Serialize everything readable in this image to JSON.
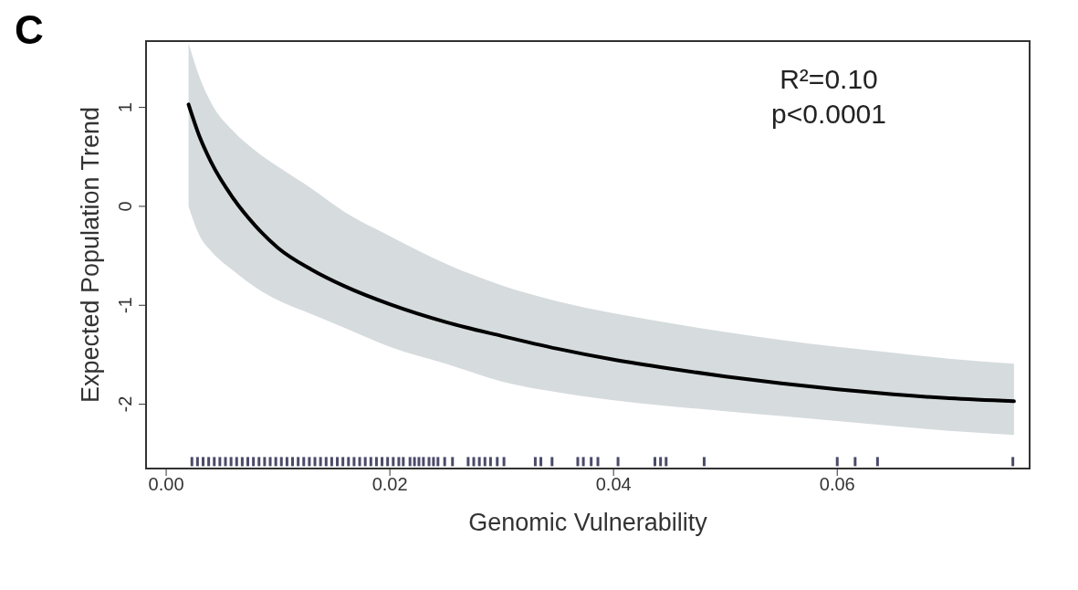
{
  "chart_data": {
    "type": "line",
    "xlabel": "Genomic Vulnerability",
    "ylabel": "Expected Population Trend",
    "annotations": [
      "C",
      "R²=0.10\np<0.0001"
    ],
    "xlim": [
      -0.0018,
      0.0772
    ],
    "ylim": [
      -2.65,
      1.67
    ],
    "xticks": [
      {
        "value": 0,
        "label": "0.00"
      },
      {
        "value": 0.02,
        "label": "0.02"
      },
      {
        "value": 0.04,
        "label": "0.04"
      },
      {
        "value": 0.06,
        "label": "0.06"
      }
    ],
    "yticks": [
      -2,
      -1,
      0,
      1
    ],
    "series": [
      {
        "color": "#000000",
        "x": [
          0.002,
          0.003,
          0.004,
          0.006,
          0.008,
          0.01,
          0.013,
          0.016,
          0.02,
          0.025,
          0.03,
          0.035,
          0.04,
          0.045,
          0.05,
          0.055,
          0.06,
          0.065,
          0.07,
          0.0758
        ],
        "values": [
          1.03,
          0.7,
          0.45,
          0.08,
          -0.2,
          -0.42,
          -0.64,
          -0.81,
          -0.99,
          -1.17,
          -1.31,
          -1.44,
          -1.55,
          -1.64,
          -1.72,
          -1.79,
          -1.85,
          -1.9,
          -1.94,
          -1.97
        ],
        "upper": [
          1.65,
          1.3,
          1.05,
          0.76,
          0.56,
          0.4,
          0.18,
          -0.06,
          -0.3,
          -0.58,
          -0.8,
          -0.96,
          -1.08,
          -1.18,
          -1.27,
          -1.35,
          -1.42,
          -1.48,
          -1.54,
          -1.59
        ],
        "lower": [
          0.0,
          -0.3,
          -0.45,
          -0.65,
          -0.82,
          -0.95,
          -1.09,
          -1.23,
          -1.42,
          -1.59,
          -1.77,
          -1.88,
          -1.96,
          -2.02,
          -2.07,
          -2.12,
          -2.17,
          -2.22,
          -2.27,
          -2.31
        ]
      },
      {
        "type": "scatter",
        "color": "#4a4a6a",
        "x": [
          0.0023,
          0.0028,
          0.0033,
          0.0038,
          0.0043,
          0.0048,
          0.0053,
          0.0058,
          0.0063,
          0.0068,
          0.0073,
          0.0078,
          0.0083,
          0.0088,
          0.0093,
          0.0098,
          0.0103,
          0.0108,
          0.0113,
          0.0118,
          0.0123,
          0.0128,
          0.0133,
          0.0138,
          0.0143,
          0.0148,
          0.0153,
          0.0158,
          0.0163,
          0.0168,
          0.0173,
          0.0178,
          0.0183,
          0.0188,
          0.0193,
          0.0198,
          0.0203,
          0.0208,
          0.0212,
          0.0218,
          0.0222,
          0.0226,
          0.023,
          0.0235,
          0.0239,
          0.0243,
          0.0249,
          0.0256,
          0.027,
          0.0275,
          0.028,
          0.0285,
          0.029,
          0.0296,
          0.0302,
          0.033,
          0.0335,
          0.0345,
          0.0368,
          0.0373,
          0.038,
          0.0386,
          0.0404,
          0.0437,
          0.0442,
          0.0447,
          0.0481,
          0.06,
          0.0616,
          0.0636,
          0.0757
        ],
        "values": [
          -2.58,
          -2.58,
          -2.58,
          -2.58,
          -2.58,
          -2.58,
          -2.58,
          -2.58,
          -2.58,
          -2.58,
          -2.58,
          -2.58,
          -2.58,
          -2.58,
          -2.58,
          -2.58,
          -2.58,
          -2.58,
          -2.58,
          -2.58,
          -2.58,
          -2.58,
          -2.58,
          -2.58,
          -2.58,
          -2.58,
          -2.58,
          -2.58,
          -2.58,
          -2.58,
          -2.58,
          -2.58,
          -2.58,
          -2.58,
          -2.58,
          -2.58,
          -2.58,
          -2.58,
          -2.58,
          -2.58,
          -2.58,
          -2.58,
          -2.58,
          -2.58,
          -2.58,
          -2.58,
          -2.58,
          -2.58,
          -2.58,
          -2.58,
          -2.58,
          -2.58,
          -2.58,
          -2.58,
          -2.58,
          -2.58,
          -2.58,
          -2.58,
          -2.58,
          -2.58,
          -2.58,
          -2.58,
          -2.58,
          -2.58,
          -2.58,
          -2.58,
          -2.58,
          -2.58,
          -2.58,
          -2.58,
          -2.58
        ]
      }
    ]
  }
}
